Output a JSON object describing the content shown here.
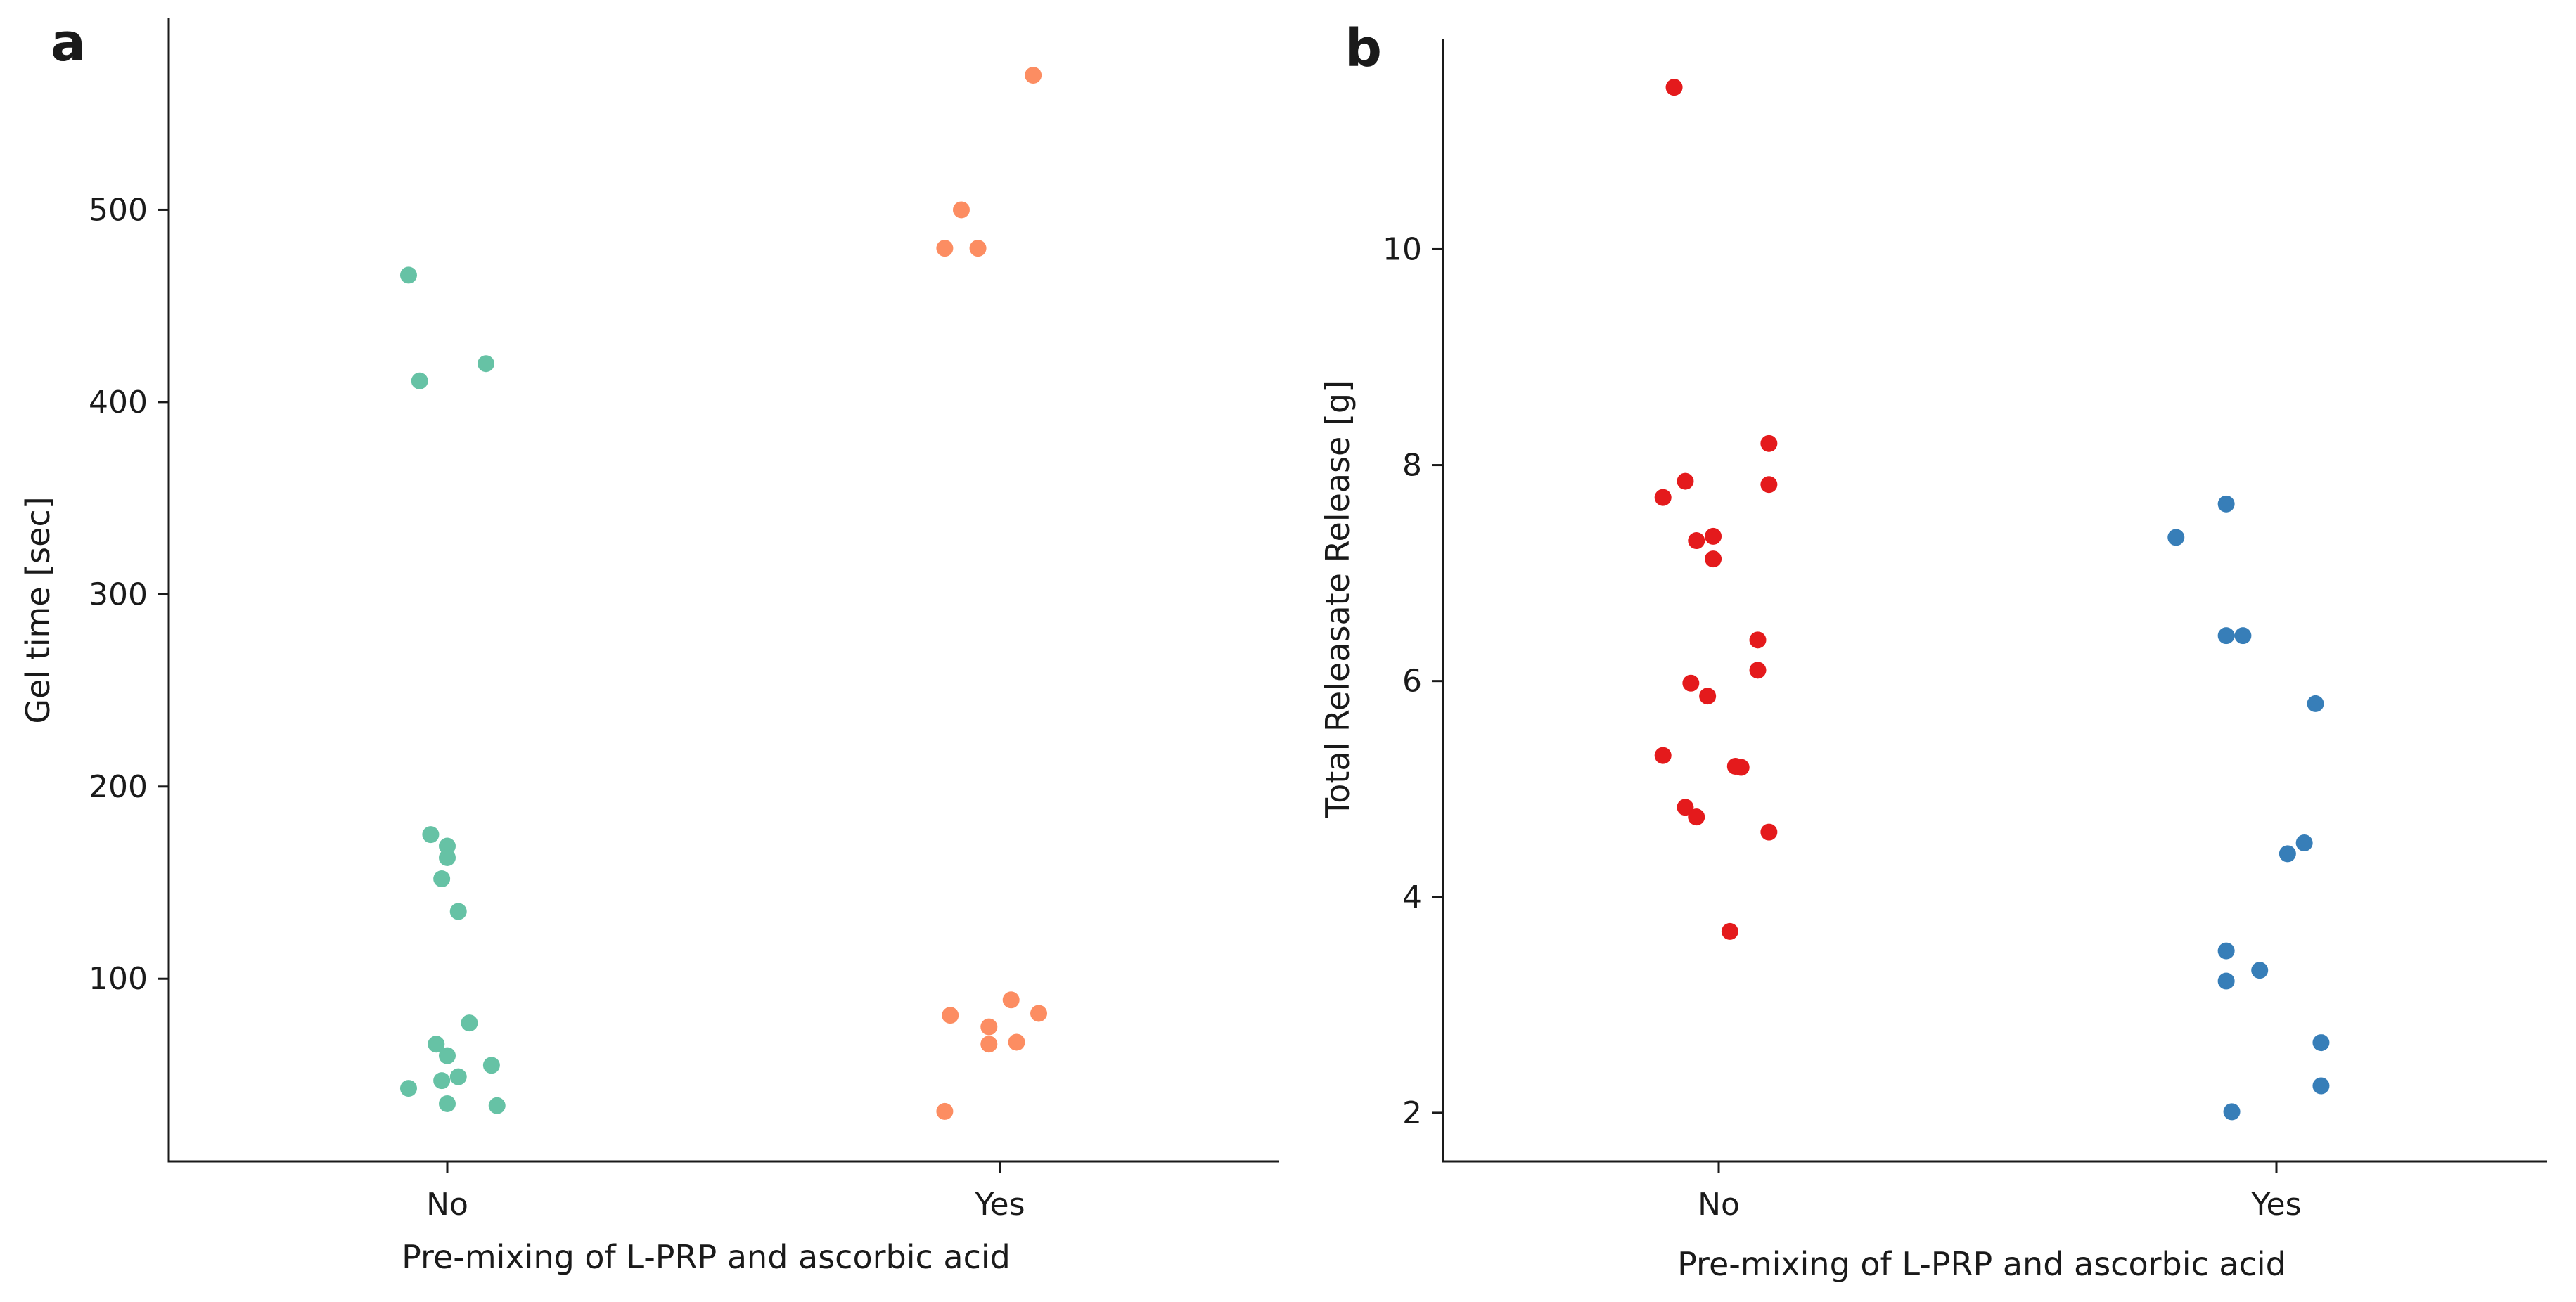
{
  "chart_data": [
    {
      "type": "scatter",
      "panel_label": "a",
      "xlabel": "Pre-mixing of L-PRP and ascorbic acid",
      "ylabel": "Gel time [sec]",
      "categories": [
        "No",
        "Yes"
      ],
      "ylim": [
        5,
        600
      ],
      "yticks": [
        100,
        200,
        300,
        400,
        500
      ],
      "series": [
        {
          "name": "No",
          "color": "#66c2a5",
          "points": [
            {
              "jitter": -0.07,
              "y": 466
            },
            {
              "jitter": -0.05,
              "y": 411
            },
            {
              "jitter": 0.07,
              "y": 420
            },
            {
              "jitter": -0.03,
              "y": 175
            },
            {
              "jitter": 0.0,
              "y": 169
            },
            {
              "jitter": 0.0,
              "y": 163
            },
            {
              "jitter": -0.01,
              "y": 152
            },
            {
              "jitter": 0.02,
              "y": 135
            },
            {
              "jitter": 0.04,
              "y": 77
            },
            {
              "jitter": -0.02,
              "y": 66
            },
            {
              "jitter": 0.0,
              "y": 60
            },
            {
              "jitter": 0.08,
              "y": 55
            },
            {
              "jitter": 0.02,
              "y": 49
            },
            {
              "jitter": -0.01,
              "y": 47
            },
            {
              "jitter": -0.07,
              "y": 43
            },
            {
              "jitter": 0.0,
              "y": 35
            },
            {
              "jitter": 0.09,
              "y": 34
            }
          ]
        },
        {
          "name": "Yes",
          "color": "#fc8d62",
          "points": [
            {
              "jitter": 0.06,
              "y": 570
            },
            {
              "jitter": -0.07,
              "y": 500
            },
            {
              "jitter": -0.1,
              "y": 480
            },
            {
              "jitter": -0.04,
              "y": 480
            },
            {
              "jitter": 0.02,
              "y": 89
            },
            {
              "jitter": 0.07,
              "y": 82
            },
            {
              "jitter": -0.09,
              "y": 81
            },
            {
              "jitter": -0.02,
              "y": 75
            },
            {
              "jitter": 0.03,
              "y": 67
            },
            {
              "jitter": -0.02,
              "y": 66
            },
            {
              "jitter": -0.1,
              "y": 31
            }
          ]
        }
      ]
    },
    {
      "type": "scatter",
      "panel_label": "b",
      "xlabel": "Pre-mixing of L-PRP and ascorbic acid",
      "ylabel": "Total Releasate Release [g]",
      "categories": [
        "No",
        "Yes"
      ],
      "ylim": [
        1.55,
        11.95
      ],
      "yticks": [
        2,
        4,
        6,
        8,
        10
      ],
      "series": [
        {
          "name": "No",
          "color": "#e41a1c",
          "points": [
            {
              "jitter": -0.08,
              "y": 11.5
            },
            {
              "jitter": 0.09,
              "y": 8.2
            },
            {
              "jitter": -0.06,
              "y": 7.85
            },
            {
              "jitter": 0.09,
              "y": 7.82
            },
            {
              "jitter": -0.1,
              "y": 7.7
            },
            {
              "jitter": -0.01,
              "y": 7.34
            },
            {
              "jitter": -0.04,
              "y": 7.3
            },
            {
              "jitter": -0.01,
              "y": 7.13
            },
            {
              "jitter": 0.07,
              "y": 6.38
            },
            {
              "jitter": 0.07,
              "y": 6.1
            },
            {
              "jitter": -0.05,
              "y": 5.98
            },
            {
              "jitter": -0.02,
              "y": 5.86
            },
            {
              "jitter": -0.1,
              "y": 5.31
            },
            {
              "jitter": 0.03,
              "y": 5.21
            },
            {
              "jitter": 0.04,
              "y": 5.2
            },
            {
              "jitter": -0.06,
              "y": 4.83
            },
            {
              "jitter": -0.04,
              "y": 4.74
            },
            {
              "jitter": 0.09,
              "y": 4.6
            },
            {
              "jitter": 0.02,
              "y": 3.68
            }
          ]
        },
        {
          "name": "Yes",
          "color": "#377eb8",
          "points": [
            {
              "jitter": -0.09,
              "y": 7.64
            },
            {
              "jitter": -0.18,
              "y": 7.33
            },
            {
              "jitter": -0.09,
              "y": 6.42
            },
            {
              "jitter": -0.06,
              "y": 6.42
            },
            {
              "jitter": 0.07,
              "y": 5.79
            },
            {
              "jitter": 0.05,
              "y": 4.5
            },
            {
              "jitter": 0.02,
              "y": 4.4
            },
            {
              "jitter": -0.09,
              "y": 3.5
            },
            {
              "jitter": -0.03,
              "y": 3.32
            },
            {
              "jitter": -0.09,
              "y": 3.22
            },
            {
              "jitter": 0.08,
              "y": 2.65
            },
            {
              "jitter": 0.08,
              "y": 2.25
            },
            {
              "jitter": -0.08,
              "y": 2.01
            }
          ]
        }
      ]
    }
  ]
}
